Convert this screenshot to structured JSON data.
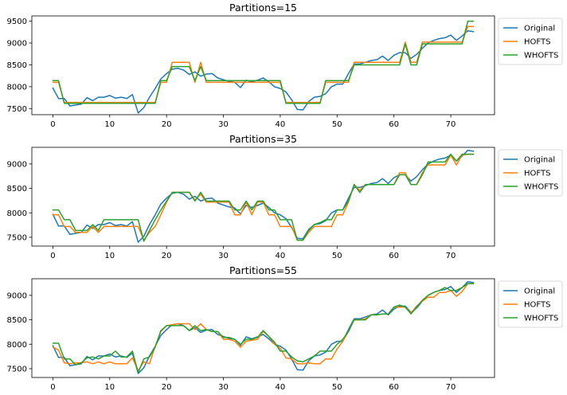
{
  "chart_data": [
    {
      "type": "line",
      "title": "Partitions=15",
      "xlabel": "",
      "ylabel": "",
      "xlim": [
        -3.7,
        77.7
      ],
      "ylim": [
        7360,
        9620
      ],
      "xticks": [
        0,
        10,
        20,
        30,
        40,
        50,
        60,
        70
      ],
      "yticks": [
        7500,
        8000,
        8500,
        9000,
        9500
      ],
      "legend": "outside-right",
      "series": [
        {
          "name": "Original",
          "color": "#1f77b4",
          "values": [
            7970,
            7730,
            7730,
            7560,
            7580,
            7600,
            7750,
            7680,
            7760,
            7760,
            7800,
            7740,
            7760,
            7730,
            7820,
            7400,
            7520,
            7760,
            7960,
            8180,
            8300,
            8400,
            8420,
            8380,
            8280,
            8340,
            8240,
            8290,
            8300,
            8200,
            8160,
            8120,
            8100,
            7980,
            8150,
            8110,
            8150,
            8200,
            8110,
            8000,
            7960,
            7880,
            7700,
            7480,
            7470,
            7660,
            7760,
            7780,
            7840,
            8000,
            8060,
            8060,
            8300,
            8520,
            8520,
            8560,
            8600,
            8620,
            8700,
            8600,
            8720,
            8780,
            8780,
            8650,
            8740,
            8880,
            9000,
            9060,
            9100,
            9120,
            9180,
            9060,
            9160,
            9280,
            9260
          ]
        },
        {
          "name": "HOFTS",
          "color": "#ff7f0e",
          "values": [
            8100,
            8100,
            7640,
            7640,
            7640,
            7640,
            7640,
            7640,
            7640,
            7640,
            7640,
            7640,
            7640,
            7640,
            7640,
            7640,
            7640,
            7640,
            7640,
            8100,
            8100,
            8560,
            8560,
            8560,
            8560,
            8100,
            8560,
            8100,
            8100,
            8100,
            8100,
            8100,
            8100,
            8100,
            8100,
            8100,
            8100,
            8100,
            8100,
            8100,
            8100,
            7640,
            7640,
            7640,
            7640,
            7640,
            7640,
            7640,
            8100,
            8100,
            8100,
            8100,
            8100,
            8560,
            8560,
            8560,
            8560,
            8560,
            8560,
            8560,
            8560,
            8560,
            9020,
            8560,
            8560,
            9020,
            9020,
            9020,
            9020,
            9020,
            9020,
            9020,
            9020,
            9380,
            9380
          ]
        },
        {
          "name": "WHOFTS",
          "color": "#2ca02c",
          "values": [
            8140,
            8140,
            7620,
            7620,
            7620,
            7620,
            7620,
            7620,
            7620,
            7620,
            7620,
            7620,
            7620,
            7620,
            7620,
            7620,
            7620,
            7620,
            7620,
            8140,
            8140,
            8460,
            8460,
            8460,
            8460,
            8140,
            8460,
            8140,
            8140,
            8140,
            8140,
            8140,
            8140,
            8140,
            8140,
            8140,
            8140,
            8140,
            8140,
            8140,
            8140,
            7620,
            7620,
            7620,
            7620,
            7620,
            7620,
            7620,
            8140,
            8140,
            8140,
            8140,
            8140,
            8500,
            8500,
            8500,
            8500,
            8500,
            8500,
            8500,
            8500,
            8500,
            8980,
            8500,
            8500,
            8980,
            8980,
            8980,
            8980,
            8980,
            8980,
            8980,
            8980,
            9500,
            9500
          ]
        }
      ]
    },
    {
      "type": "line",
      "title": "Partitions=35",
      "xlabel": "",
      "ylabel": "",
      "xlim": [
        -3.7,
        77.7
      ],
      "ylim": [
        7320,
        9340
      ],
      "xticks": [
        0,
        10,
        20,
        30,
        40,
        50,
        60,
        70
      ],
      "yticks": [
        7500,
        8000,
        8500,
        9000
      ],
      "legend": "outside-right",
      "series": [
        {
          "name": "Original",
          "color": "#1f77b4",
          "values": [
            7970,
            7730,
            7730,
            7560,
            7580,
            7600,
            7750,
            7680,
            7760,
            7760,
            7800,
            7740,
            7760,
            7730,
            7820,
            7400,
            7520,
            7760,
            7960,
            8180,
            8300,
            8400,
            8420,
            8380,
            8280,
            8340,
            8240,
            8290,
            8300,
            8200,
            8160,
            8120,
            8100,
            7980,
            8150,
            8110,
            8150,
            8200,
            8110,
            8000,
            7960,
            7880,
            7700,
            7480,
            7470,
            7660,
            7760,
            7780,
            7840,
            8000,
            8060,
            8060,
            8300,
            8520,
            8520,
            8560,
            8600,
            8620,
            8700,
            8600,
            8720,
            8780,
            8780,
            8650,
            8740,
            8880,
            9000,
            9060,
            9100,
            9120,
            9180,
            9060,
            9160,
            9280,
            9260
          ]
        },
        {
          "name": "HOFTS",
          "color": "#ff7f0e",
          "values": [
            7960,
            7960,
            7720,
            7720,
            7600,
            7600,
            7600,
            7720,
            7600,
            7720,
            7720,
            7720,
            7720,
            7720,
            7720,
            7720,
            7440,
            7600,
            7720,
            7960,
            8220,
            8420,
            8420,
            8420,
            8420,
            8260,
            8380,
            8220,
            8220,
            8220,
            8220,
            8220,
            7960,
            7960,
            8220,
            7960,
            8220,
            8220,
            7960,
            7960,
            7720,
            7720,
            7720,
            7440,
            7440,
            7600,
            7720,
            7720,
            7720,
            7720,
            7960,
            7960,
            8220,
            8580,
            8460,
            8580,
            8580,
            8580,
            8580,
            8580,
            8580,
            8820,
            8820,
            8580,
            8580,
            8820,
            8980,
            8980,
            8980,
            8980,
            9180,
            8980,
            9180,
            9200,
            9200
          ]
        },
        {
          "name": "WHOFTS",
          "color": "#2ca02c",
          "values": [
            8060,
            8060,
            7860,
            7860,
            7640,
            7640,
            7640,
            7760,
            7640,
            7860,
            7860,
            7860,
            7860,
            7860,
            7860,
            7860,
            7420,
            7640,
            7860,
            8060,
            8240,
            8420,
            8420,
            8420,
            8420,
            8240,
            8420,
            8240,
            8240,
            8240,
            8240,
            8240,
            8060,
            8060,
            8240,
            8060,
            8240,
            8240,
            8060,
            8060,
            7860,
            7860,
            7860,
            7440,
            7440,
            7640,
            7760,
            7800,
            7860,
            7860,
            8060,
            8060,
            8240,
            8580,
            8420,
            8580,
            8580,
            8580,
            8580,
            8580,
            8580,
            8780,
            8780,
            8580,
            8580,
            8780,
            9040,
            9040,
            9040,
            9040,
            9200,
            9060,
            9200,
            9200,
            9200
          ]
        }
      ]
    },
    {
      "type": "line",
      "title": "Partitions=55",
      "xlabel": "",
      "ylabel": "",
      "xlim": [
        -3.7,
        77.7
      ],
      "ylim": [
        7320,
        9340
      ],
      "xticks": [
        0,
        10,
        20,
        30,
        40,
        50,
        60,
        70
      ],
      "yticks": [
        7500,
        8000,
        8500,
        9000
      ],
      "legend": "outside-right",
      "series": [
        {
          "name": "Original",
          "color": "#1f77b4",
          "values": [
            7970,
            7730,
            7730,
            7560,
            7580,
            7600,
            7750,
            7680,
            7760,
            7760,
            7800,
            7740,
            7760,
            7730,
            7820,
            7400,
            7520,
            7760,
            7960,
            8180,
            8300,
            8400,
            8420,
            8380,
            8280,
            8340,
            8240,
            8290,
            8300,
            8200,
            8160,
            8120,
            8100,
            7980,
            8150,
            8110,
            8150,
            8200,
            8110,
            8000,
            7960,
            7880,
            7700,
            7480,
            7470,
            7660,
            7760,
            7780,
            7840,
            8000,
            8060,
            8060,
            8300,
            8520,
            8520,
            8560,
            8600,
            8620,
            8700,
            8600,
            8720,
            8780,
            8780,
            8650,
            8740,
            8880,
            9000,
            9060,
            9100,
            9120,
            9180,
            9060,
            9160,
            9280,
            9260
          ]
        },
        {
          "name": "HOFTS",
          "color": "#ff7f0e",
          "values": [
            7940,
            7880,
            7620,
            7600,
            7620,
            7620,
            7640,
            7600,
            7640,
            7600,
            7640,
            7600,
            7600,
            7600,
            7720,
            7460,
            7640,
            7600,
            7960,
            8260,
            8380,
            8400,
            8420,
            8420,
            8420,
            8300,
            8420,
            8300,
            8260,
            8260,
            8100,
            8100,
            8060,
            7940,
            8060,
            8080,
            8100,
            8260,
            8160,
            8000,
            7920,
            7720,
            7700,
            7600,
            7600,
            7620,
            7600,
            7600,
            7700,
            7700,
            7900,
            8060,
            8260,
            8500,
            8500,
            8520,
            8600,
            8600,
            8620,
            8620,
            8760,
            8760,
            8760,
            8640,
            8780,
            8880,
            8960,
            8960,
            9060,
            9060,
            9100,
            8980,
            9080,
            9240,
            9240
          ]
        },
        {
          "name": "WHOFTS",
          "color": "#2ca02c",
          "values": [
            8020,
            8020,
            7700,
            7700,
            7580,
            7620,
            7720,
            7740,
            7700,
            7760,
            7760,
            7860,
            7740,
            7740,
            7860,
            7420,
            7700,
            7740,
            7940,
            8280,
            8380,
            8380,
            8380,
            8380,
            8280,
            8380,
            8280,
            8300,
            8260,
            8260,
            8140,
            8140,
            8100,
            8000,
            8100,
            8100,
            8140,
            8280,
            8160,
            8040,
            7860,
            7860,
            7740,
            7660,
            7640,
            7700,
            7760,
            7860,
            7860,
            7860,
            8000,
            8100,
            8260,
            8500,
            8500,
            8500,
            8600,
            8600,
            8620,
            8620,
            8760,
            8800,
            8760,
            8620,
            8760,
            8900,
            9000,
            9060,
            9100,
            9160,
            9100,
            9100,
            9160,
            9240,
            9240
          ]
        }
      ]
    }
  ]
}
